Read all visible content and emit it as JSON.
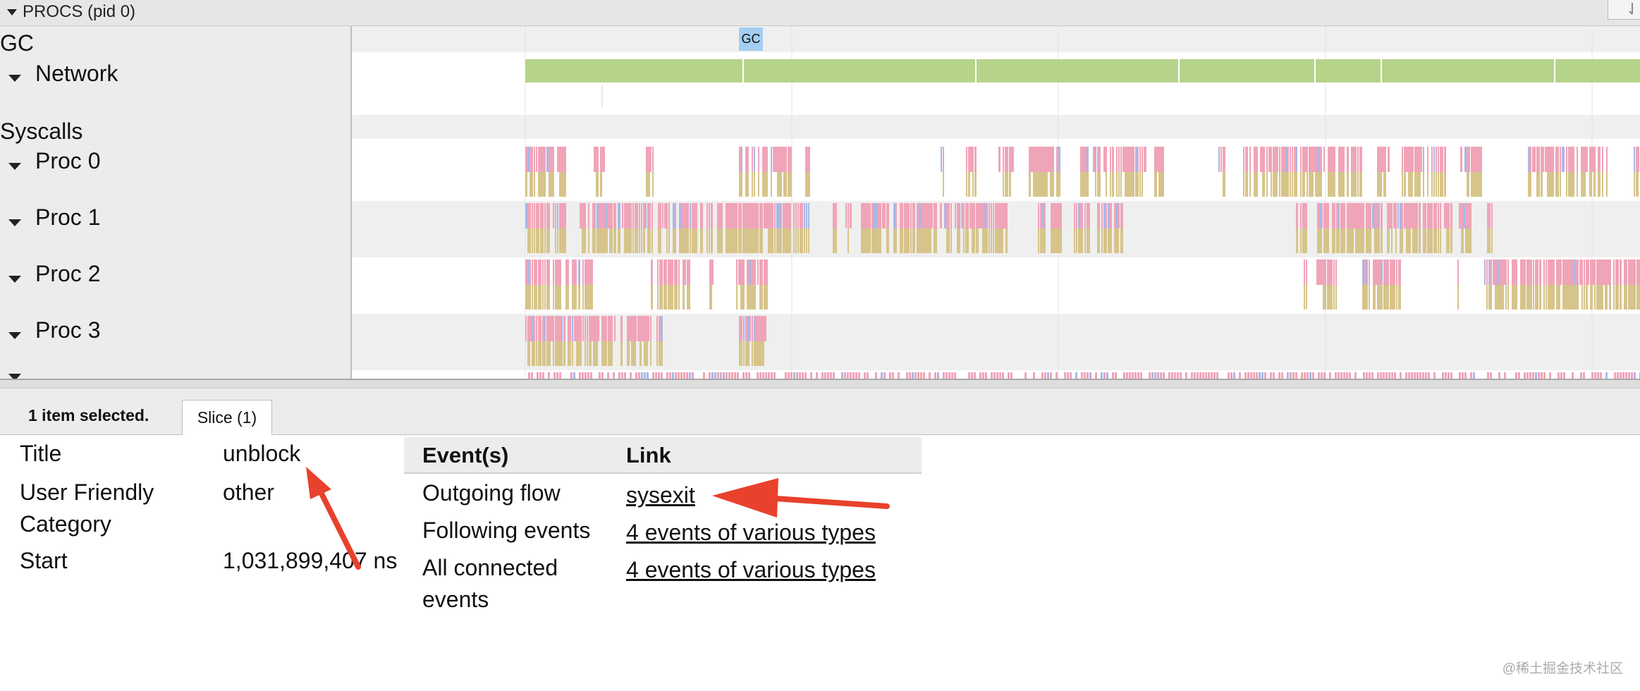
{
  "process": {
    "label": "PROCS (pid 0)"
  },
  "tracks": {
    "gc": "GC",
    "gc_marker": "GC",
    "network": "Network",
    "syscalls": "Syscalls",
    "proc0": "Proc 0",
    "proc1": "Proc 1",
    "proc2": "Proc 2",
    "proc3": "Proc 3"
  },
  "analysis": {
    "selected_count": "1 item selected.",
    "tab_label": "Slice (1)",
    "props": {
      "title_label": "Title",
      "title_value": "unblock",
      "category_label": "User Friendly Category",
      "category_value": "other",
      "start_label": "Start",
      "start_value": "1,031,899,407 ns"
    },
    "events": {
      "col_event": "Event(s)",
      "col_link": "Link",
      "rows": [
        {
          "event": "Outgoing flow",
          "link": "sysexit"
        },
        {
          "event": "Following events",
          "link": "4 events of various types"
        },
        {
          "event": "All connected events",
          "link": "4 events of various types"
        }
      ]
    }
  },
  "watermark": "@稀土掘金技术社区",
  "colors": {
    "network": "#b5d48a",
    "syscall_pink": "#f0a4b8",
    "syscall_tan": "#d6c48a",
    "syscall_blue": "#a8b8e8",
    "gc_marker": "#a3cdf2",
    "annotation_arrow": "#e8412c"
  }
}
